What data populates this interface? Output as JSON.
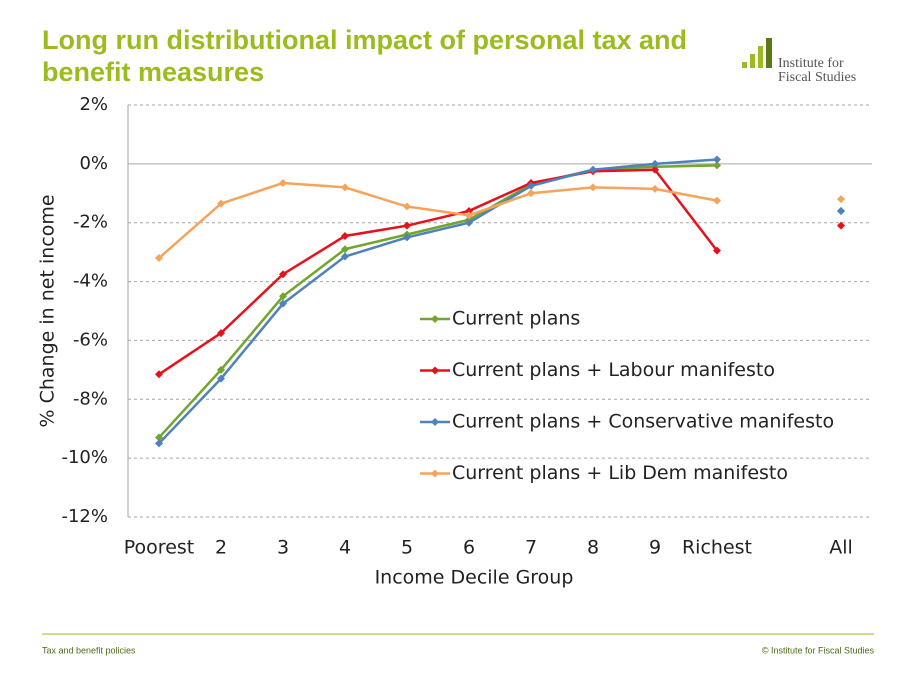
{
  "chart_data": {
    "type": "line",
    "title": "Long run distributional impact of personal tax and benefit measures",
    "xlabel": "Income Decile Group",
    "ylabel": "% Change in net income",
    "categories": [
      "Poorest",
      "2",
      "3",
      "4",
      "5",
      "6",
      "7",
      "8",
      "9",
      "Richest",
      null,
      "All"
    ],
    "series": [
      {
        "name": "Current plans",
        "color": "#72a52a",
        "values": [
          -9.3,
          -7.0,
          -4.5,
          -2.9,
          -2.4,
          -1.9,
          -0.7,
          -0.2,
          -0.1,
          -0.05,
          null,
          -1.6
        ]
      },
      {
        "name": "Current plans + Labour manifesto",
        "color": "#e8101b",
        "values": [
          -7.15,
          -5.75,
          -3.75,
          -2.45,
          -2.1,
          -1.6,
          -0.65,
          -0.25,
          -0.2,
          -2.95,
          null,
          -2.1
        ]
      },
      {
        "name": "Current plans + Conservative manifesto",
        "color": "#4f81bd",
        "values": [
          -9.5,
          -7.3,
          -4.75,
          -3.15,
          -2.5,
          -2.0,
          -0.75,
          -0.2,
          0,
          0.15,
          null,
          -1.6
        ]
      },
      {
        "name": "Current plans + Lib Dem manifesto",
        "color": "#f6a35b",
        "values": [
          -3.2,
          -1.35,
          -0.65,
          -0.8,
          -1.45,
          -1.75,
          -1.0,
          -0.8,
          -0.85,
          -1.25,
          null,
          -1.2
        ]
      }
    ],
    "ylim": [
      -12,
      2
    ],
    "yticks": [
      {
        "value": 2,
        "label": "2%"
      },
      {
        "value": 0,
        "label": "0%"
      },
      {
        "value": -2,
        "label": "-2%"
      },
      {
        "value": -4,
        "label": "-4%"
      },
      {
        "value": -6,
        "label": "-6%"
      },
      {
        "value": -8,
        "label": "-8%"
      },
      {
        "value": -10,
        "label": "-10%"
      },
      {
        "value": -12,
        "label": "-12%"
      }
    ],
    "grid": true
  },
  "logo": [
    "Institute for",
    "Fiscal Studies"
  ],
  "footer": {
    "left": "Tax and benefit policies",
    "right": "© Institute for Fiscal Studies"
  }
}
